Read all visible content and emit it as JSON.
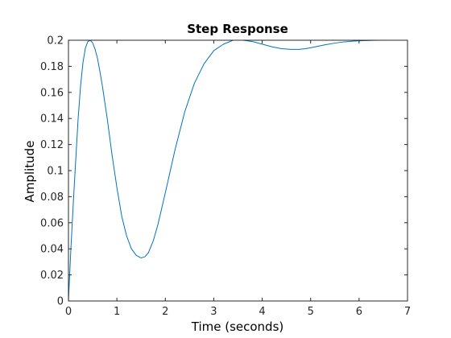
{
  "chart_data": {
    "type": "line",
    "title": "Step Response",
    "xlabel": "Time (seconds)",
    "ylabel": "Amplitude",
    "xlim": [
      0,
      7
    ],
    "ylim": [
      0,
      0.2
    ],
    "xticks": [
      "0",
      "1",
      "2",
      "3",
      "4",
      "5",
      "6",
      "7"
    ],
    "yticks": [
      "0",
      "0.02",
      "0.04",
      "0.06",
      "0.08",
      "0.1",
      "0.12",
      "0.14",
      "0.16",
      "0.18",
      "0.2"
    ],
    "grid": false,
    "legend": "none",
    "steady_state": 0.2,
    "series": [
      {
        "color": "#0072bd",
        "x": [
          0,
          0.05,
          0.1,
          0.15,
          0.2,
          0.25,
          0.3,
          0.35,
          0.4,
          0.45,
          0.5,
          0.55,
          0.6,
          0.65,
          0.7,
          0.8,
          0.9,
          1.0,
          1.1,
          1.2,
          1.3,
          1.4,
          1.5,
          1.58,
          1.65,
          1.75,
          1.85,
          2.0,
          2.2,
          2.4,
          2.6,
          2.8,
          3.0,
          3.2,
          3.4,
          3.6,
          3.8,
          4.0,
          4.2,
          4.4,
          4.6,
          4.75,
          4.9,
          5.1,
          5.3,
          5.5,
          5.7,
          5.9,
          6.1,
          6.3,
          6.5,
          6.7,
          7.0
        ],
        "y": [
          0,
          0.04,
          0.075,
          0.108,
          0.14,
          0.165,
          0.183,
          0.194,
          0.199,
          0.2,
          0.198,
          0.193,
          0.186,
          0.176,
          0.165,
          0.14,
          0.112,
          0.087,
          0.065,
          0.05,
          0.04,
          0.035,
          0.033,
          0.034,
          0.037,
          0.046,
          0.059,
          0.083,
          0.116,
          0.145,
          0.167,
          0.182,
          0.192,
          0.197,
          0.2,
          0.2,
          0.199,
          0.197,
          0.195,
          0.1935,
          0.193,
          0.193,
          0.1935,
          0.195,
          0.1965,
          0.1978,
          0.1988,
          0.1994,
          0.1997,
          0.1999,
          0.2,
          0.2,
          0.2
        ]
      }
    ]
  }
}
